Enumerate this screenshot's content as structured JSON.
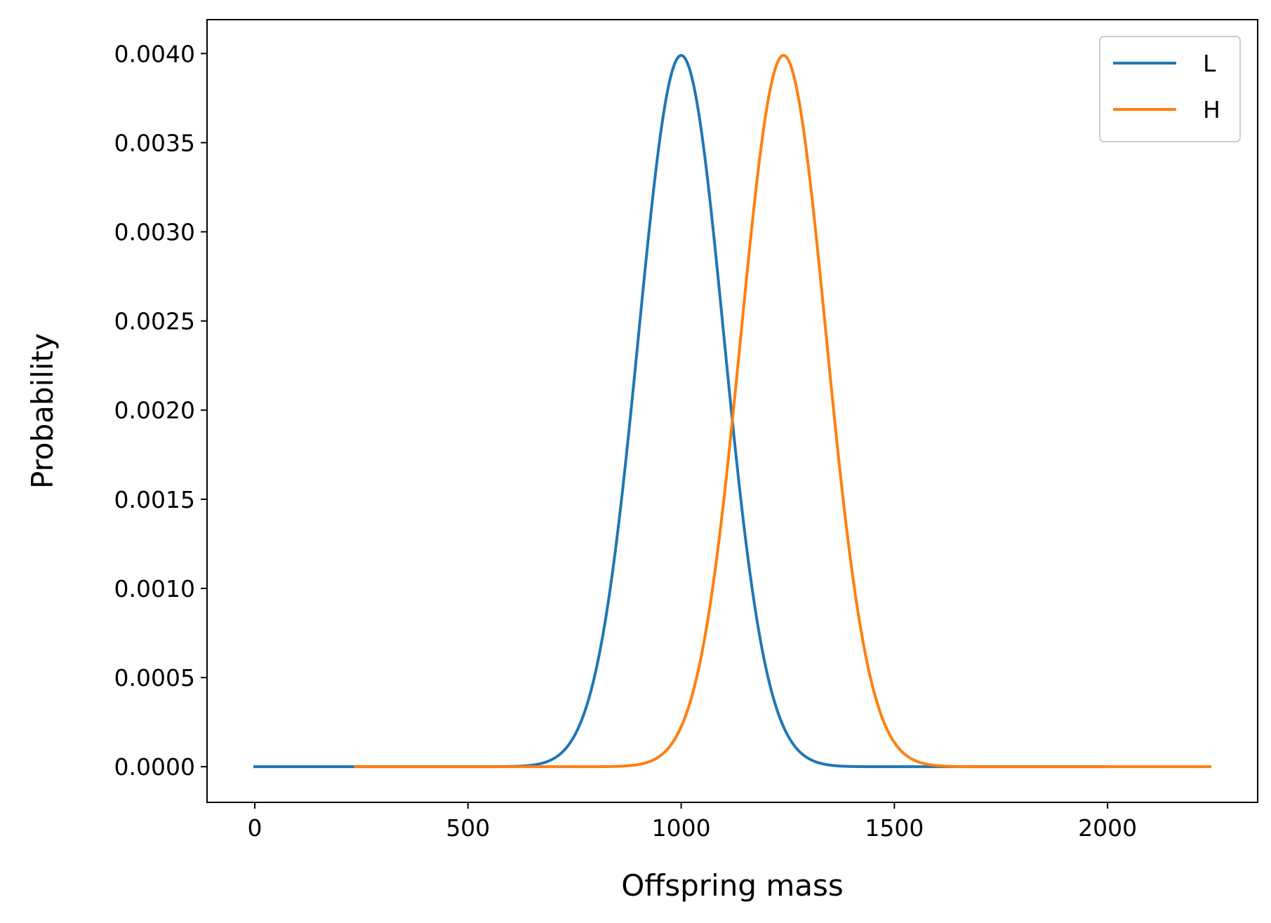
{
  "chart_data": {
    "type": "line",
    "title": "",
    "xlabel": "Offspring mass",
    "ylabel": "Probability",
    "xlim": [
      -112,
      2352
    ],
    "ylim": [
      -0.0002,
      0.00419
    ],
    "xticks": [
      0,
      500,
      1000,
      1500,
      2000
    ],
    "xtick_labels": [
      "0",
      "500",
      "1000",
      "1500",
      "2000"
    ],
    "yticks": [
      0,
      0.0005,
      0.001,
      0.0015,
      0.002,
      0.0025,
      0.003,
      0.0035,
      0.004
    ],
    "ytick_labels": [
      "0.0000",
      "0.0005",
      "0.0010",
      "0.0015",
      "0.0020",
      "0.0025",
      "0.0030",
      "0.0035",
      "0.0040"
    ],
    "grid": false,
    "legend_position": "upper-right",
    "series": [
      {
        "name": "L",
        "color": "#1f77b4",
        "distribution": "normal",
        "mean": 1000,
        "sd": 100,
        "x_range": [
          0,
          2000
        ]
      },
      {
        "name": "H",
        "color": "#ff7f0e",
        "distribution": "normal",
        "mean": 1240,
        "sd": 100,
        "x_range": [
          236,
          2240
        ]
      }
    ]
  }
}
